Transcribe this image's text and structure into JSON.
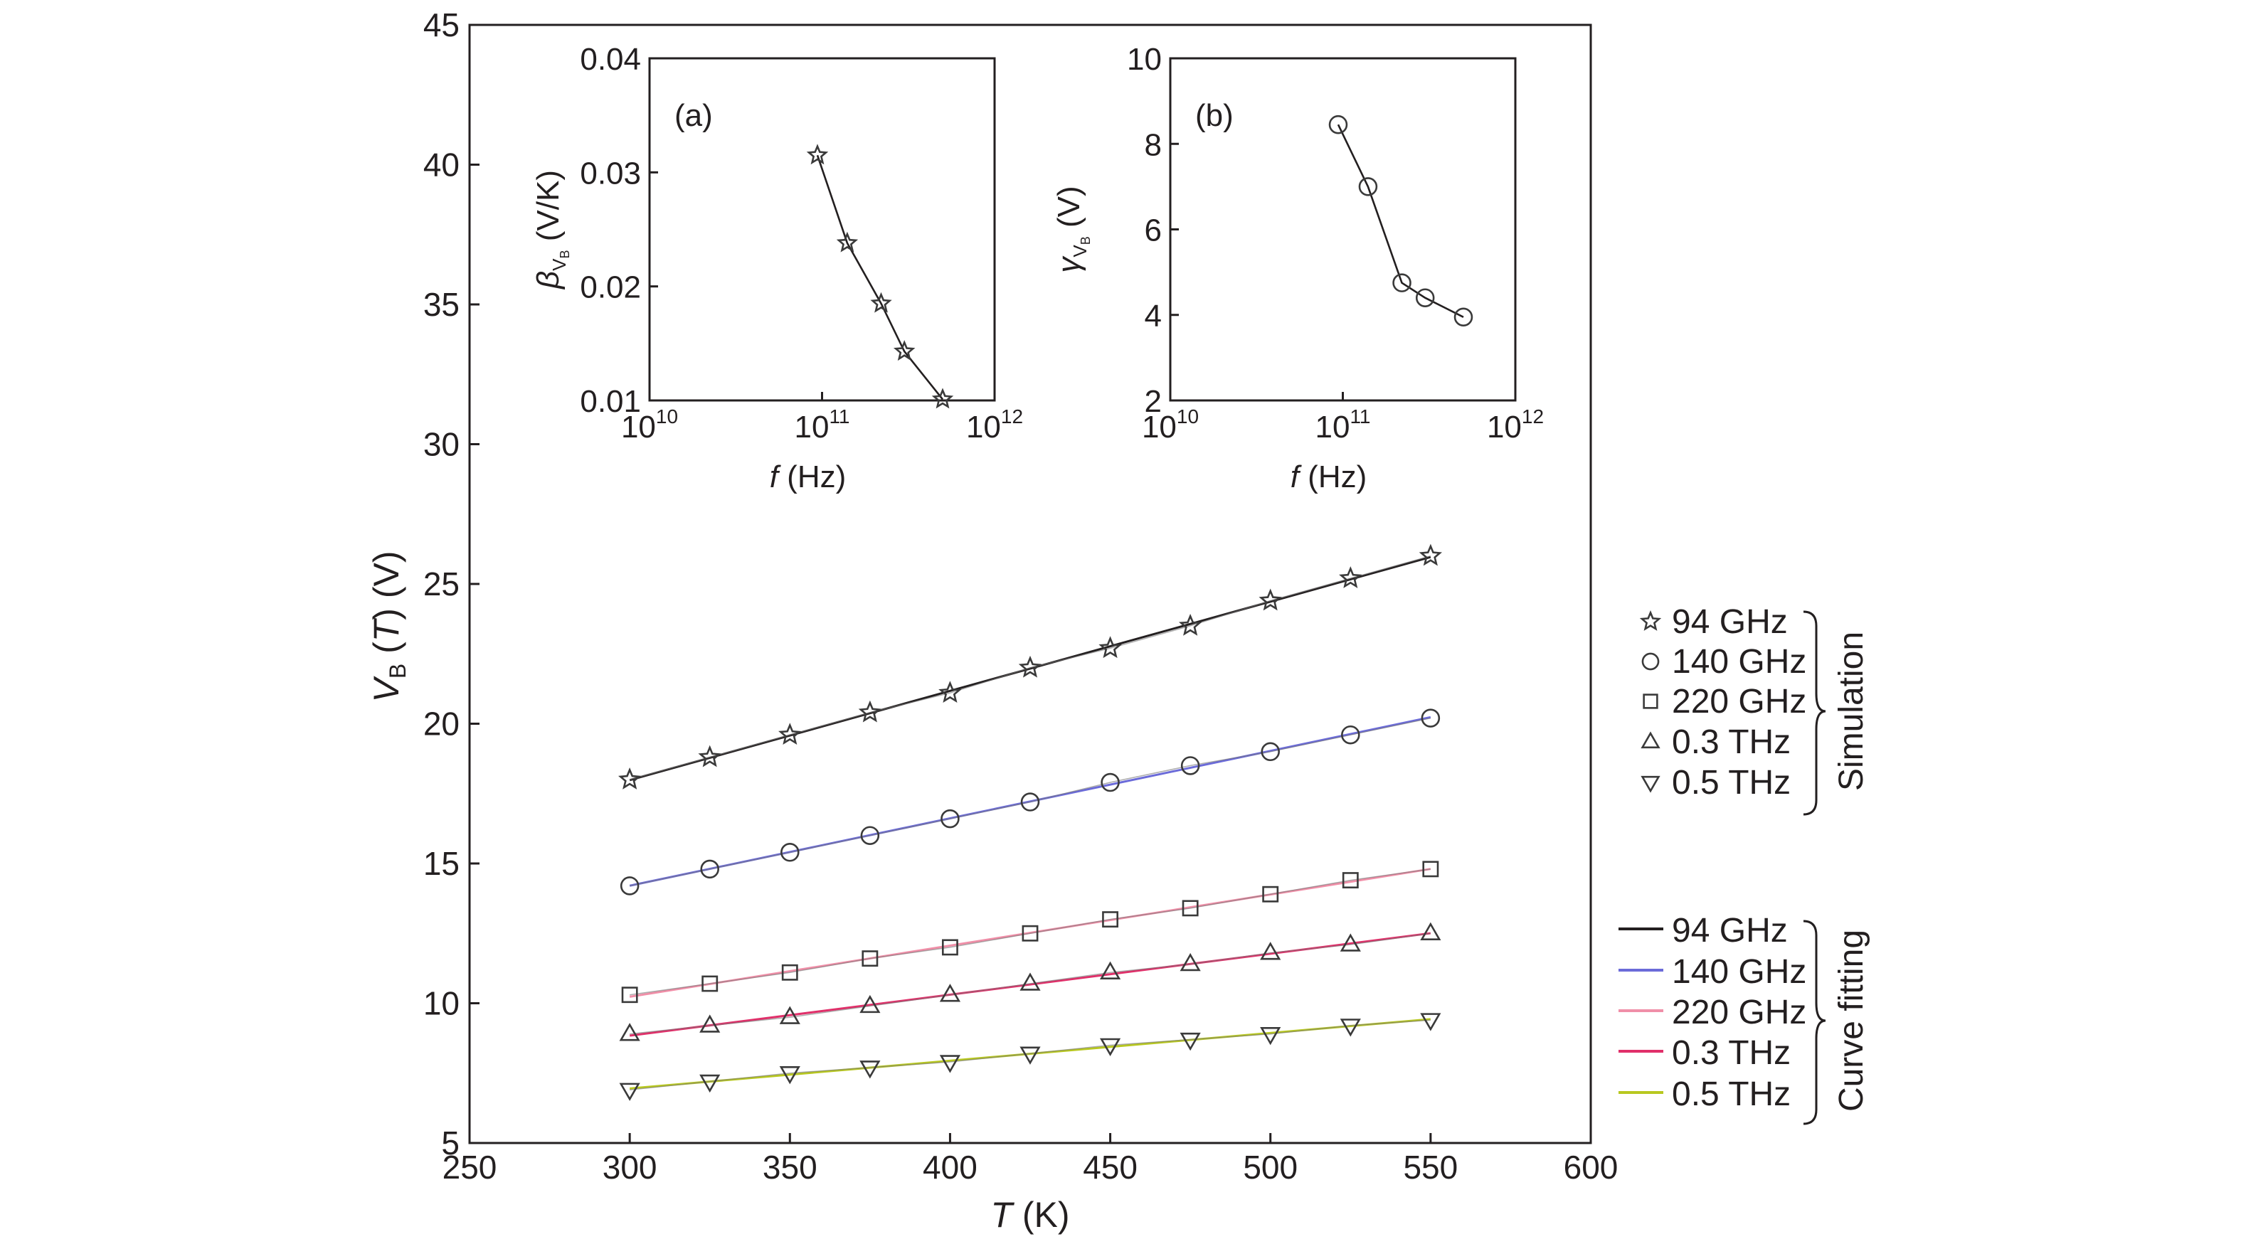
{
  "chart_data": [
    {
      "id": "main",
      "type": "line",
      "title": "",
      "xlabel": {
        "var": "T",
        "unit": " (K)"
      },
      "ylabel": {
        "var": "V",
        "sub": "B",
        "mid": " (",
        "arg": "T",
        "unit": ") (V)"
      },
      "xlim": [
        250,
        600
      ],
      "ylim": [
        5,
        45
      ],
      "xticks": [
        250,
        300,
        350,
        400,
        450,
        500,
        550,
        600
      ],
      "yticks": [
        5,
        10,
        15,
        20,
        25,
        30,
        35,
        40,
        45
      ],
      "x": [
        300,
        325,
        350,
        375,
        400,
        425,
        450,
        475,
        500,
        525,
        550
      ],
      "series": [
        {
          "name": "94 GHz",
          "marker": "star",
          "fit_color": "#231f20",
          "values": [
            18.0,
            18.8,
            19.6,
            20.4,
            21.1,
            22.0,
            22.7,
            23.5,
            24.4,
            25.2,
            26.0
          ]
        },
        {
          "name": "140 GHz",
          "marker": "circle",
          "fit_color": "#6b6bd9",
          "values": [
            14.2,
            14.8,
            15.4,
            16.0,
            16.6,
            17.2,
            17.9,
            18.5,
            19.0,
            19.6,
            20.2
          ]
        },
        {
          "name": "220 GHz",
          "marker": "square",
          "fit_color": "#f08fa8",
          "values": [
            10.3,
            10.7,
            11.1,
            11.6,
            12.0,
            12.5,
            13.0,
            13.4,
            13.9,
            14.4,
            14.8
          ]
        },
        {
          "name": "0.3 THz",
          "marker": "triangle-up",
          "fit_color": "#e0306a",
          "values": [
            8.9,
            9.2,
            9.5,
            9.9,
            10.3,
            10.7,
            11.1,
            11.4,
            11.8,
            12.1,
            12.5
          ]
        },
        {
          "name": "0.5 THz",
          "marker": "triangle-down",
          "fit_color": "#b8c820",
          "values": [
            6.9,
            7.2,
            7.5,
            7.7,
            7.9,
            8.2,
            8.5,
            8.7,
            8.9,
            9.2,
            9.4
          ]
        }
      ],
      "legend": {
        "simulation_title": "Simulation",
        "fitting_title": "Curve fitting",
        "placement": "right"
      }
    },
    {
      "id": "inset-a",
      "type": "line",
      "panel_label": "(a)",
      "xscale": "log",
      "xlabel": {
        "var": "f",
        "unit": " (Hz)"
      },
      "ylabel": {
        "var": "β",
        "sub": "V",
        "subsub": "B",
        "unit": " (V/K)"
      },
      "xlim": [
        10000000000.0,
        1000000000000.0
      ],
      "ylim": [
        0.01,
        0.04
      ],
      "xticks": [
        {
          "base": "10",
          "exp": "10"
        },
        {
          "base": "10",
          "exp": "11"
        },
        {
          "base": "10",
          "exp": "12"
        }
      ],
      "yticks": [
        "0.01",
        "0.02",
        "0.03",
        "0.04"
      ],
      "marker": "star",
      "x": [
        94000000000.0,
        140000000000.0,
        220000000000.0,
        300000000000.0,
        500000000000.0
      ],
      "values": [
        0.0315,
        0.0238,
        0.0185,
        0.0143,
        0.0101
      ]
    },
    {
      "id": "inset-b",
      "type": "line",
      "panel_label": "(b)",
      "xscale": "log",
      "xlabel": {
        "var": "f",
        "unit": " (Hz)"
      },
      "ylabel": {
        "var": "γ",
        "sub": "V",
        "subsub": "B",
        "unit": " (V)"
      },
      "xlim": [
        10000000000.0,
        1000000000000.0
      ],
      "ylim": [
        2,
        10
      ],
      "xticks": [
        {
          "base": "10",
          "exp": "10"
        },
        {
          "base": "10",
          "exp": "11"
        },
        {
          "base": "10",
          "exp": "12"
        }
      ],
      "yticks": [
        "2",
        "4",
        "6",
        "8",
        "10"
      ],
      "marker": "circle",
      "x": [
        94000000000.0,
        140000000000.0,
        220000000000.0,
        300000000000.0,
        500000000000.0
      ],
      "values": [
        8.45,
        7.0,
        4.75,
        4.4,
        3.95
      ]
    }
  ]
}
